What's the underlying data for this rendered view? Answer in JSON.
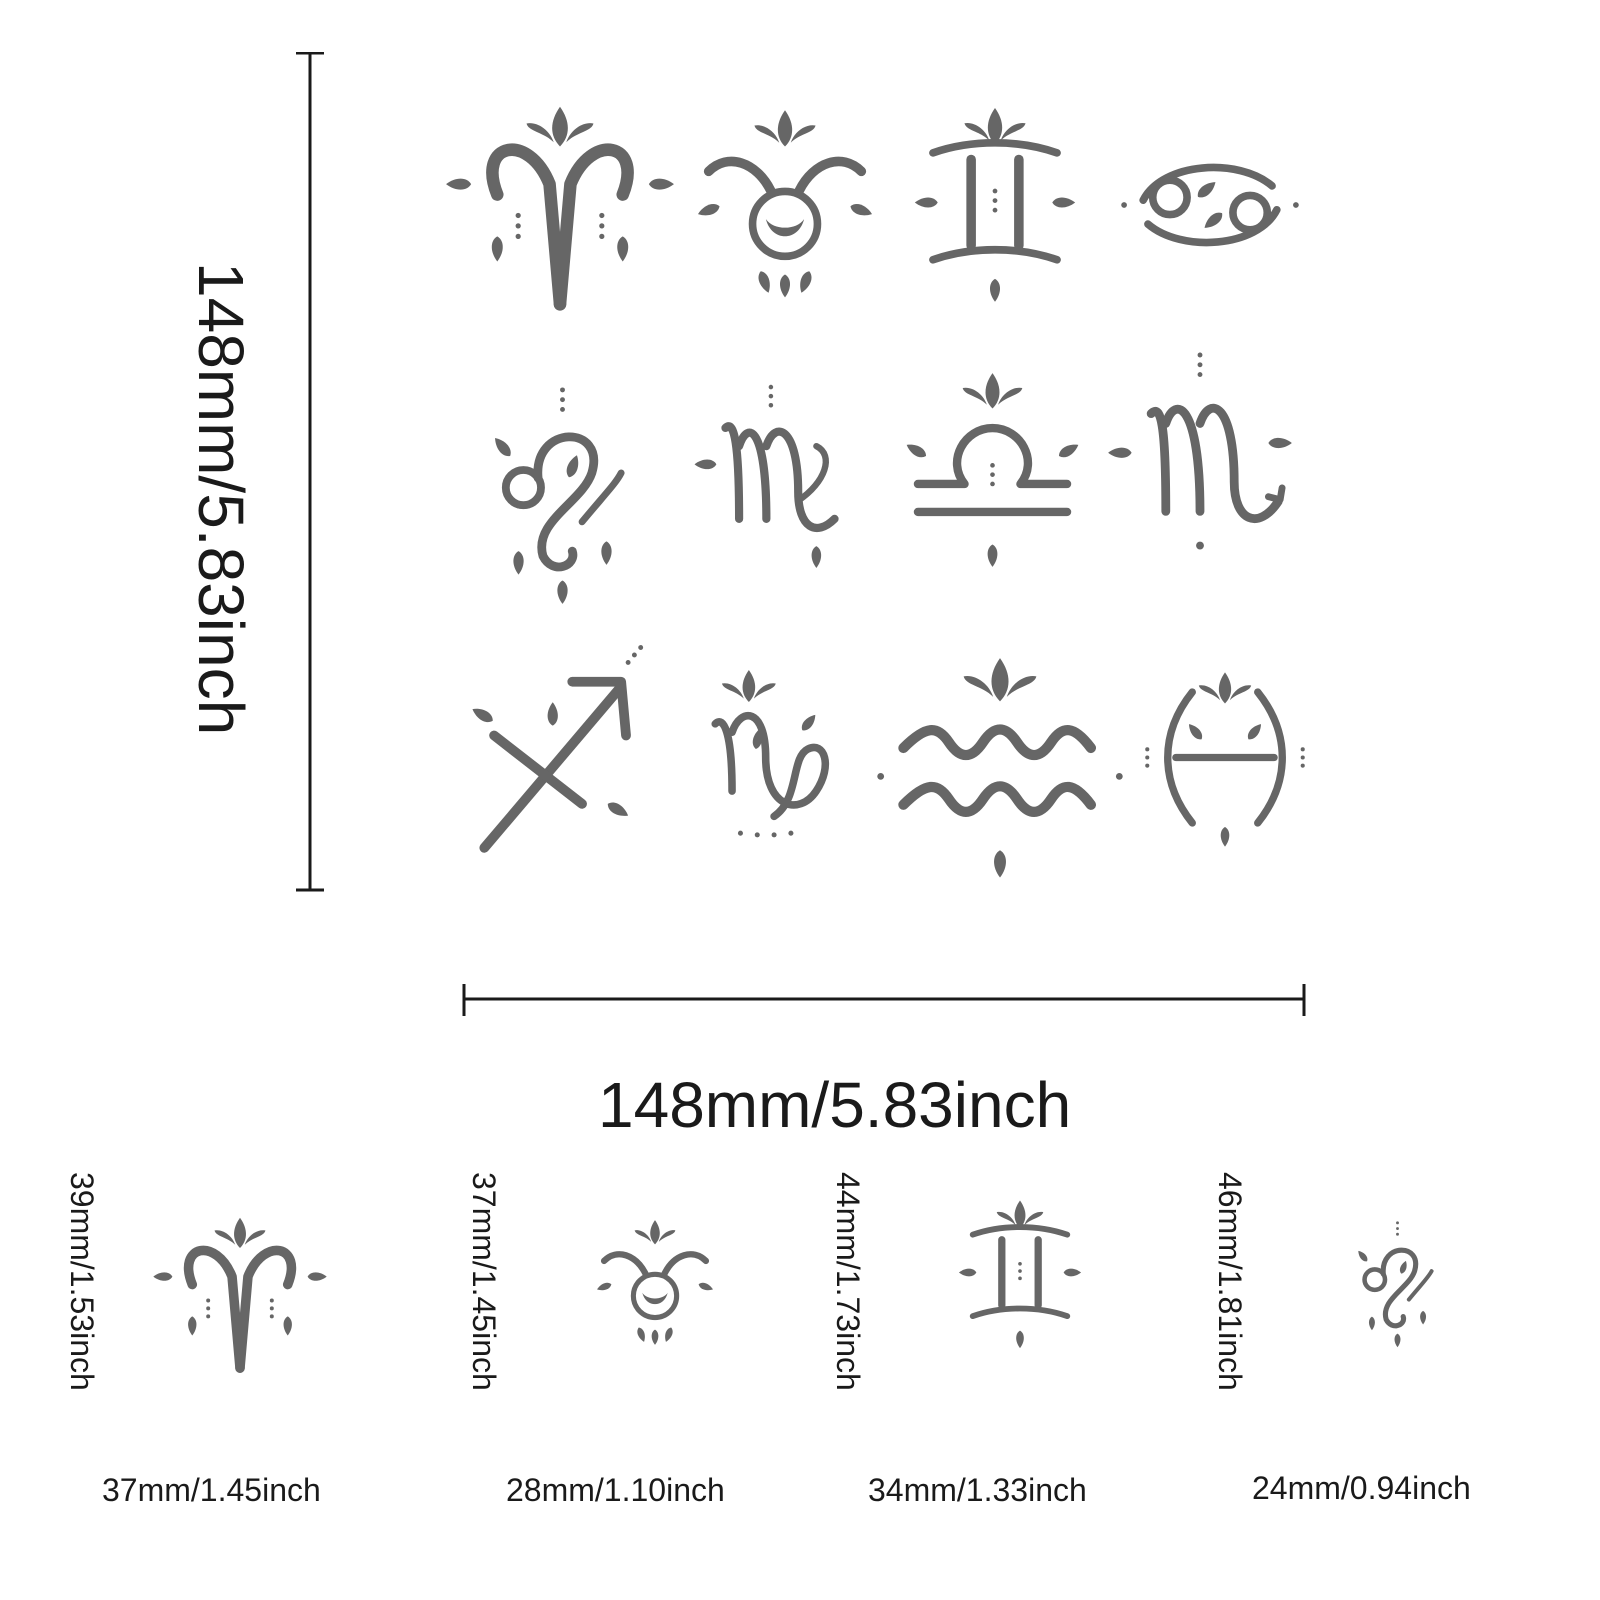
{
  "colors": {
    "stencil": "#666666",
    "measure_line": "#1a1a1a",
    "background": "#ffffff"
  },
  "sheet": {
    "height_label": "148mm/5.83inch",
    "width_label": "148mm/5.83inch",
    "symbols": [
      {
        "icon": "aries-icon"
      },
      {
        "icon": "taurus-icon"
      },
      {
        "icon": "gemini-icon"
      },
      {
        "icon": "cancer-icon"
      },
      {
        "icon": "leo-icon"
      },
      {
        "icon": "virgo-icon"
      },
      {
        "icon": "libra-icon"
      },
      {
        "icon": "scorpio-icon"
      },
      {
        "icon": "sagittarius-icon"
      },
      {
        "icon": "capricorn-icon"
      },
      {
        "icon": "aquarius-icon"
      },
      {
        "icon": "pisces-icon"
      }
    ]
  },
  "details": [
    {
      "icon": "aries-icon",
      "height_label": "39mm/1.53inch",
      "width_label": "37mm/1.45inch"
    },
    {
      "icon": "taurus-icon",
      "height_label": "37mm/1.45inch",
      "width_label": "28mm/1.10inch"
    },
    {
      "icon": "gemini-icon",
      "height_label": "44mm/1.73inch",
      "width_label": "34mm/1.33inch"
    },
    {
      "icon": "leo-icon",
      "height_label": "46mm/1.81inch",
      "width_label": "24mm/0.94inch"
    }
  ]
}
